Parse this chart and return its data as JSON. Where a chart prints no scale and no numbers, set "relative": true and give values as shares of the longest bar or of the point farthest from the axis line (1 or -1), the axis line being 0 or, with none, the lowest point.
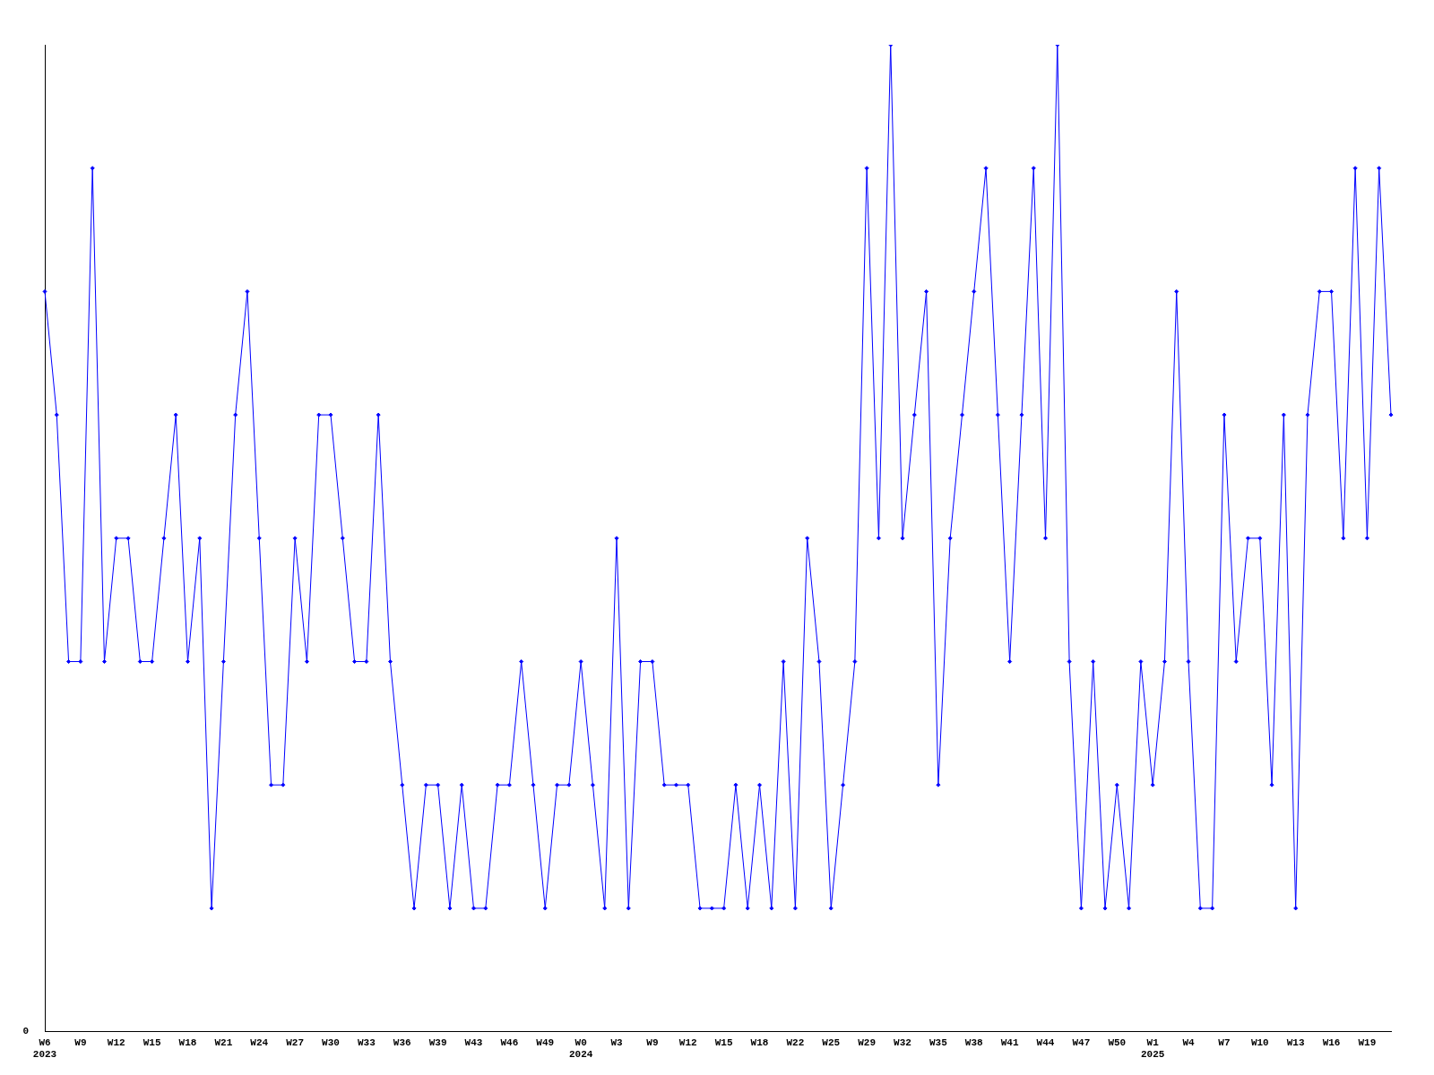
{
  "chart_data": {
    "type": "line",
    "relative": true,
    "marker": "diamond",
    "grid": false,
    "legend": false,
    "categories": [
      "W6\n2023",
      null,
      null,
      "W9",
      null,
      null,
      "W12",
      null,
      null,
      "W15",
      null,
      null,
      "W18",
      null,
      null,
      "W21",
      null,
      null,
      "W24",
      null,
      null,
      "W27",
      null,
      null,
      "W30",
      null,
      null,
      "W33",
      null,
      null,
      "W36",
      null,
      null,
      "W39",
      null,
      null,
      "W43",
      null,
      null,
      "W46",
      null,
      null,
      "W49",
      null,
      null,
      "W0\n2024",
      null,
      null,
      "W3",
      null,
      null,
      "W9",
      null,
      null,
      "W12",
      null,
      null,
      "W15",
      null,
      null,
      "W18",
      null,
      null,
      "W22",
      null,
      null,
      "W25",
      null,
      null,
      "W29",
      null,
      null,
      "W32",
      null,
      null,
      "W35",
      null,
      null,
      "W38",
      null,
      null,
      "W41",
      null,
      null,
      "W44",
      null,
      null,
      "W47",
      null,
      null,
      "W50",
      null,
      null,
      "W1\n2025",
      null,
      null,
      "W4",
      null,
      null,
      "W7",
      null,
      null,
      "W10",
      null,
      null,
      "W13",
      null,
      null,
      "W16",
      null,
      null,
      "W19",
      null,
      null
    ],
    "series": [
      {
        "color": "#0000ff",
        "values": [
          0.75,
          0.625,
          0.375,
          0.375,
          0.875,
          0.375,
          0.5,
          0.5,
          0.375,
          0.375,
          0.5,
          0.625,
          0.375,
          0.5,
          0.125,
          0.375,
          0.625,
          0.75,
          0.5,
          0.25,
          0.25,
          0.5,
          0.375,
          0.625,
          0.625,
          0.5,
          0.375,
          0.375,
          0.625,
          0.375,
          0.25,
          0.125,
          0.25,
          0.25,
          0.125,
          0.25,
          0.125,
          0.125,
          0.25,
          0.25,
          0.375,
          0.25,
          0.125,
          0.25,
          0.25,
          0.375,
          0.25,
          0.125,
          0.5,
          0.125,
          0.375,
          0.375,
          0.25,
          0.25,
          0.25,
          0.125,
          0.125,
          0.125,
          0.25,
          0.125,
          0.25,
          0.125,
          0.375,
          0.125,
          0.5,
          0.375,
          0.125,
          0.25,
          0.375,
          0.875,
          0.5,
          1,
          0.5,
          0.625,
          0.75,
          0.25,
          0.5,
          0.625,
          0.75,
          0.875,
          0.625,
          0.375,
          0.625,
          0.875,
          0.5,
          1,
          0.375,
          0.125,
          0.375,
          0.125,
          0.25,
          0.125,
          0.375,
          0.25,
          0.375,
          0.75,
          0.375,
          0.125,
          0.125,
          0.625,
          0.375,
          0.5,
          0.5,
          0.25,
          0.625,
          0.125,
          0.625,
          0.75,
          0.75,
          0.5,
          0.875,
          0.5,
          0.875,
          0.625
        ]
      }
    ],
    "annotations": [
      "0"
    ]
  }
}
